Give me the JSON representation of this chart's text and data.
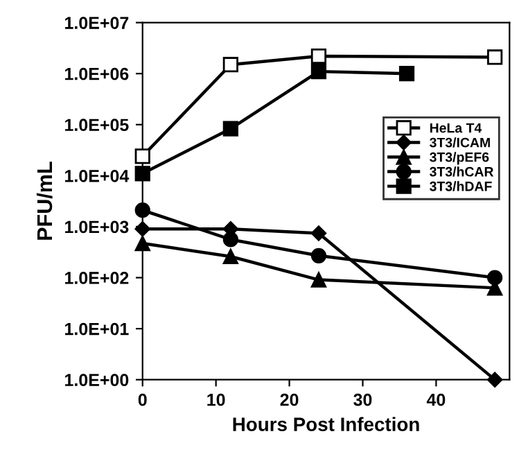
{
  "chart_data": {
    "type": "line",
    "xlabel": "Hours Post Infection",
    "ylabel": "PFU/mL",
    "x": [
      0,
      12,
      24,
      48
    ],
    "series": [
      {
        "name": "HeLa T4",
        "color": "#000000",
        "marker": "square_open",
        "values": [
          24000,
          1500000,
          2200000,
          2100000
        ]
      },
      {
        "name": "3T3/ICAM",
        "color": "#000000",
        "marker": "diamond",
        "values": [
          900,
          900,
          740,
          1
        ]
      },
      {
        "name": "3T3/pEF6",
        "color": "#000000",
        "marker": "triangle",
        "values": [
          470,
          260,
          91,
          63
        ]
      },
      {
        "name": "3T3/hCAR",
        "color": "#000000",
        "marker": "circle",
        "values": [
          2100,
          560,
          270,
          100
        ]
      },
      {
        "name": "3T3/hDAF",
        "color": "#000000",
        "marker": "square",
        "x": [
          0,
          12,
          24,
          36
        ],
        "values": [
          11000,
          83000,
          1100000,
          1000000
        ]
      }
    ],
    "log": "y",
    "xlim": [
      0,
      50
    ],
    "xticks": [
      0,
      10,
      20,
      30,
      40
    ],
    "ylim": [
      1,
      10000000
    ],
    "yticks": [
      {
        "value": 1,
        "label": "1.0E+00"
      },
      {
        "value": 10,
        "label": "1.0E+01"
      },
      {
        "value": 100,
        "label": "1.0E+02"
      },
      {
        "value": 1000,
        "label": "1.0E+03"
      },
      {
        "value": 10000,
        "label": "1.0E+04"
      },
      {
        "value": 100000,
        "label": "1.0E+05"
      },
      {
        "value": 1000000,
        "label": "1.0E+06"
      },
      {
        "value": 10000000,
        "label": "1.0E+07"
      }
    ],
    "grid": false,
    "legend": "right",
    "line_style": "solid"
  }
}
